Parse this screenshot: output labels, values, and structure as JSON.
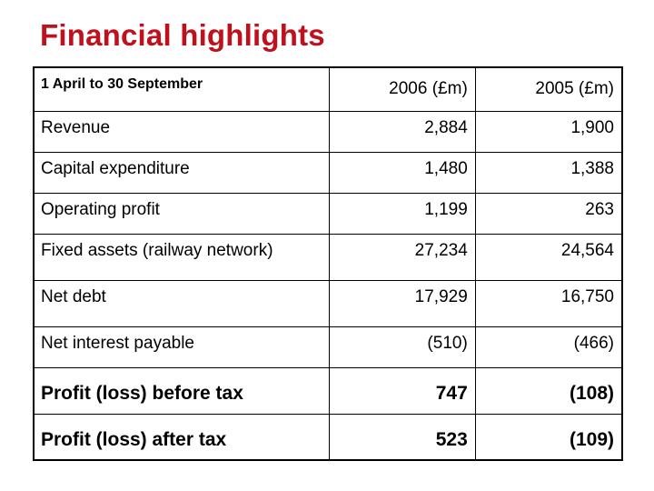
{
  "title": "Financial highlights",
  "table": {
    "header": {
      "period": "1 April to 30 September",
      "col1": "2006 (£m)",
      "col2": "2005 (£m)"
    },
    "rows": [
      {
        "label": "Revenue",
        "v2006": "2,884",
        "v2005": "1,900"
      },
      {
        "label": "Capital expenditure",
        "v2006": "1,480",
        "v2005": "1,388"
      },
      {
        "label": "Operating profit",
        "v2006": "1,199",
        "v2005": "263"
      },
      {
        "label": "Fixed assets (railway network)",
        "v2006": "27,234",
        "v2005": "24,564"
      },
      {
        "label": "Net debt",
        "v2006": "17,929",
        "v2005": "16,750"
      },
      {
        "label": "Net interest payable",
        "v2006": "(510)",
        "v2005": "(466)"
      },
      {
        "label": "Profit (loss) before tax",
        "v2006": "747",
        "v2005": "(108)"
      },
      {
        "label": "Profit (loss) after tax",
        "v2006": "523",
        "v2005": "(109)"
      }
    ]
  },
  "colors": {
    "title": "#c0101b",
    "border": "#000000",
    "background": "#ffffff"
  }
}
